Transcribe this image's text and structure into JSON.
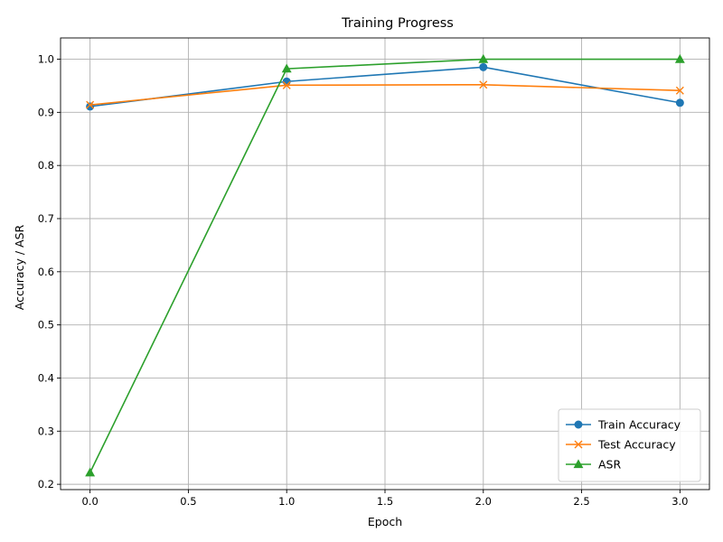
{
  "chart_data": {
    "type": "line",
    "title": "Training Progress",
    "xlabel": "Epoch",
    "ylabel": "Accuracy / ASR",
    "x": [
      0,
      1,
      2,
      3
    ],
    "xlim": [
      -0.15,
      3.15
    ],
    "ylim": [
      0.19,
      1.04
    ],
    "xticks": [
      0.0,
      0.5,
      1.0,
      1.5,
      2.0,
      2.5,
      3.0
    ],
    "xtick_labels": [
      "0.0",
      "0.5",
      "1.0",
      "1.5",
      "2.0",
      "2.5",
      "3.0"
    ],
    "yticks": [
      0.2,
      0.3,
      0.4,
      0.5,
      0.6,
      0.7,
      0.8,
      0.9,
      1.0
    ],
    "ytick_labels": [
      "0.2",
      "0.3",
      "0.4",
      "0.5",
      "0.6",
      "0.7",
      "0.8",
      "0.9",
      "1.0"
    ],
    "grid": true,
    "legend_position": "lower-right",
    "series": [
      {
        "name": "Train Accuracy",
        "values": [
          0.911,
          0.958,
          0.985,
          0.918
        ],
        "color": "#1f77b4",
        "marker": "circle"
      },
      {
        "name": "Test Accuracy",
        "values": [
          0.914,
          0.951,
          0.952,
          0.941
        ],
        "color": "#ff7f0e",
        "marker": "x"
      },
      {
        "name": "ASR",
        "values": [
          0.222,
          0.982,
          1.0,
          1.0
        ],
        "color": "#2ca02c",
        "marker": "triangle"
      }
    ]
  }
}
